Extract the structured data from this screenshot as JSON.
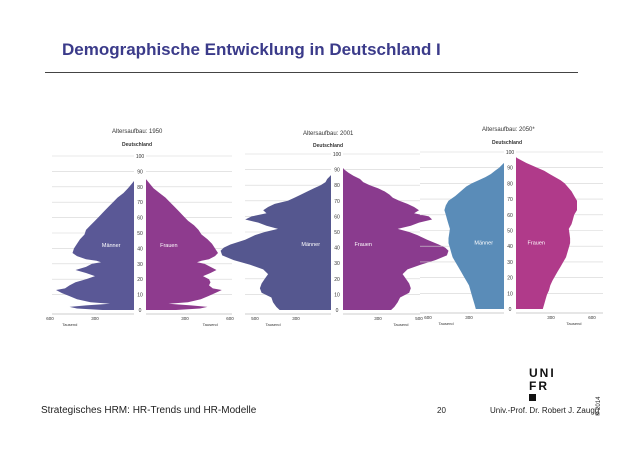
{
  "slide": {
    "title": "Demographische Entwicklung in Deutschland I",
    "footer_left": "Strategisches HRM: HR-Trends und HR-Modelle",
    "page_number": "20",
    "author": "Univ.-Prof. Dr. Robert J. Zaugg",
    "copyright": "© 2014"
  },
  "logo": {
    "row1": "UNI",
    "row2": "FR"
  },
  "chart_data": [
    {
      "type": "population-pyramid",
      "title": "Altersaufbau: 1950",
      "subtitle": "Deutschland",
      "labels": {
        "left": "Männer",
        "right": "Frauen"
      },
      "age_ticks": [
        0,
        10,
        20,
        30,
        40,
        50,
        60,
        70,
        80,
        90,
        100
      ],
      "x_ticks_left": [
        "600",
        "300"
      ],
      "x_ticks_right": [
        "300",
        "600"
      ],
      "x_unit": "Tausend",
      "x_max": 600,
      "colors": {
        "male": "#5a5896",
        "female": "#8e3b8e"
      },
      "profile": [
        [
          0,
          250,
          240
        ],
        [
          1,
          420,
          400
        ],
        [
          2,
          470,
          450
        ],
        [
          3,
          360,
          340
        ],
        [
          4,
          200,
          190
        ],
        [
          5,
          330,
          320
        ],
        [
          7,
          420,
          405
        ],
        [
          9,
          470,
          455
        ],
        [
          11,
          520,
          500
        ],
        [
          13,
          560,
          545
        ],
        [
          14,
          500,
          485
        ],
        [
          16,
          470,
          460
        ],
        [
          18,
          430,
          470
        ],
        [
          20,
          360,
          460
        ],
        [
          22,
          300,
          420
        ],
        [
          24,
          360,
          470
        ],
        [
          26,
          430,
          510
        ],
        [
          28,
          360,
          470
        ],
        [
          30,
          320,
          430
        ],
        [
          31,
          260,
          380
        ],
        [
          32,
          290,
          410
        ],
        [
          33,
          360,
          460
        ],
        [
          35,
          420,
          500
        ],
        [
          37,
          450,
          520
        ],
        [
          40,
          440,
          500
        ],
        [
          43,
          420,
          480
        ],
        [
          46,
          400,
          450
        ],
        [
          49,
          370,
          410
        ],
        [
          52,
          360,
          390
        ],
        [
          55,
          330,
          360
        ],
        [
          58,
          300,
          320
        ],
        [
          61,
          270,
          290
        ],
        [
          64,
          240,
          260
        ],
        [
          67,
          210,
          230
        ],
        [
          70,
          180,
          200
        ],
        [
          73,
          150,
          170
        ],
        [
          76,
          110,
          130
        ],
        [
          79,
          80,
          90
        ],
        [
          82,
          55,
          65
        ],
        [
          85,
          30,
          40
        ],
        [
          88,
          15,
          20
        ],
        [
          91,
          6,
          8
        ],
        [
          94,
          2,
          3
        ],
        [
          97,
          0,
          0
        ]
      ]
    },
    {
      "type": "population-pyramid",
      "title": "Altersaufbau: 2001",
      "subtitle": "Deutschland",
      "labels": {
        "left": "Männer",
        "right": "Frauen"
      },
      "age_ticks": [
        0,
        10,
        20,
        30,
        40,
        50,
        60,
        70,
        80,
        90,
        100
      ],
      "x_ticks_left": [
        "500",
        "300"
      ],
      "x_ticks_right": [
        "300",
        "500"
      ],
      "x_unit": "Tausend",
      "x_max": 500,
      "colors": {
        "male": "#55578f",
        "female": "#8a3b8e"
      },
      "profile": [
        [
          0,
          350,
          330
        ],
        [
          2,
          370,
          350
        ],
        [
          5,
          390,
          370
        ],
        [
          8,
          400,
          385
        ],
        [
          11,
          460,
          440
        ],
        [
          14,
          470,
          450
        ],
        [
          17,
          460,
          440
        ],
        [
          20,
          440,
          420
        ],
        [
          23,
          420,
          400
        ],
        [
          26,
          450,
          430
        ],
        [
          29,
          530,
          510
        ],
        [
          32,
          630,
          600
        ],
        [
          35,
          700,
          670
        ],
        [
          38,
          710,
          680
        ],
        [
          40,
          690,
          660
        ],
        [
          42,
          650,
          620
        ],
        [
          45,
          560,
          550
        ],
        [
          48,
          500,
          490
        ],
        [
          50,
          440,
          440
        ],
        [
          52,
          360,
          370
        ],
        [
          54,
          430,
          450
        ],
        [
          56,
          480,
          500
        ],
        [
          58,
          560,
          580
        ],
        [
          60,
          520,
          560
        ],
        [
          62,
          430,
          470
        ],
        [
          64,
          450,
          500
        ],
        [
          66,
          420,
          470
        ],
        [
          68,
          380,
          430
        ],
        [
          70,
          300,
          380
        ],
        [
          72,
          260,
          340
        ],
        [
          74,
          220,
          320
        ],
        [
          76,
          180,
          290
        ],
        [
          78,
          140,
          250
        ],
        [
          80,
          100,
          200
        ],
        [
          82,
          70,
          160
        ],
        [
          84,
          60,
          140
        ],
        [
          86,
          40,
          100
        ],
        [
          88,
          25,
          70
        ],
        [
          90,
          15,
          45
        ],
        [
          93,
          6,
          20
        ],
        [
          96,
          2,
          6
        ],
        [
          99,
          0,
          0
        ]
      ]
    },
    {
      "type": "population-pyramid",
      "title": "Altersaufbau: 2050*",
      "subtitle": "Deutschland",
      "labels": {
        "left": "Männer",
        "right": "Frauen"
      },
      "age_ticks": [
        0,
        10,
        20,
        30,
        40,
        50,
        60,
        70,
        80,
        90,
        100
      ],
      "x_ticks_left": [
        "600",
        "300"
      ],
      "x_ticks_right": [
        "300",
        "600"
      ],
      "x_unit": "Tausend",
      "x_max": 600,
      "colors": {
        "male": "#5a8cb8",
        "female": "#b03a8a"
      },
      "profile": [
        [
          0,
          250,
          240
        ],
        [
          3,
          260,
          250
        ],
        [
          6,
          270,
          260
        ],
        [
          9,
          280,
          270
        ],
        [
          12,
          290,
          285
        ],
        [
          15,
          300,
          295
        ],
        [
          18,
          320,
          310
        ],
        [
          21,
          340,
          330
        ],
        [
          24,
          360,
          350
        ],
        [
          27,
          380,
          370
        ],
        [
          30,
          400,
          390
        ],
        [
          33,
          420,
          410
        ],
        [
          36,
          430,
          420
        ],
        [
          39,
          440,
          430
        ],
        [
          42,
          450,
          440
        ],
        [
          45,
          450,
          440
        ],
        [
          48,
          445,
          435
        ],
        [
          51,
          440,
          430
        ],
        [
          54,
          450,
          450
        ],
        [
          57,
          460,
          460
        ],
        [
          60,
          470,
          470
        ],
        [
          63,
          480,
          490
        ],
        [
          66,
          470,
          490
        ],
        [
          69,
          450,
          490
        ],
        [
          72,
          400,
          470
        ],
        [
          75,
          360,
          450
        ],
        [
          78,
          320,
          420
        ],
        [
          80,
          280,
          400
        ],
        [
          82,
          230,
          370
        ],
        [
          84,
          180,
          330
        ],
        [
          86,
          140,
          290
        ],
        [
          88,
          110,
          250
        ],
        [
          90,
          80,
          200
        ],
        [
          93,
          45,
          120
        ],
        [
          96,
          20,
          55
        ],
        [
          99,
          3,
          8
        ]
      ]
    }
  ]
}
